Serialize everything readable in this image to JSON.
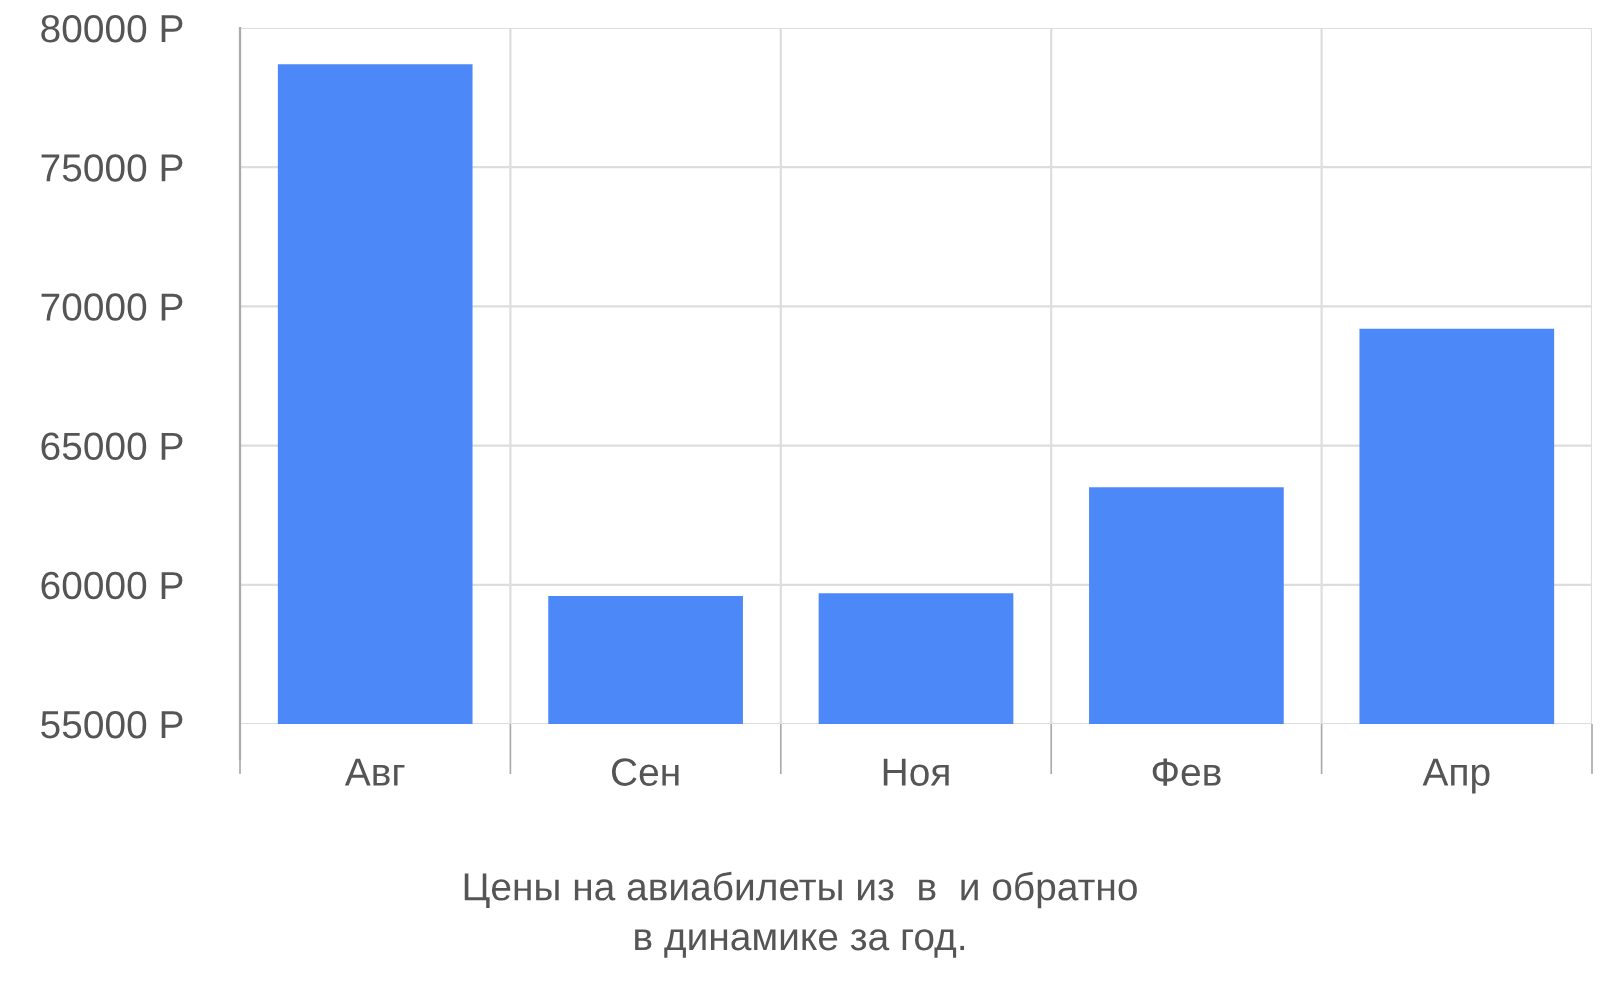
{
  "chart_data": {
    "type": "bar",
    "categories": [
      "Авг",
      "Сен",
      "Ноя",
      "Фев",
      "Апр"
    ],
    "values": [
      78700,
      59600,
      59700,
      63500,
      69200
    ],
    "color": "#4d88f9",
    "ylim": [
      55000,
      80000
    ],
    "yticks": [
      {
        "value": 55000,
        "label": "55000 Р"
      },
      {
        "value": 60000,
        "label": "60000 Р"
      },
      {
        "value": 65000,
        "label": "65000 Р"
      },
      {
        "value": 70000,
        "label": "70000 Р"
      },
      {
        "value": 75000,
        "label": "75000 Р"
      },
      {
        "value": 80000,
        "label": "80000 Р"
      }
    ],
    "grid": true,
    "annotations": [
      "Цены на авиабилеты из  в  и обратно",
      "в динамике за год."
    ]
  }
}
